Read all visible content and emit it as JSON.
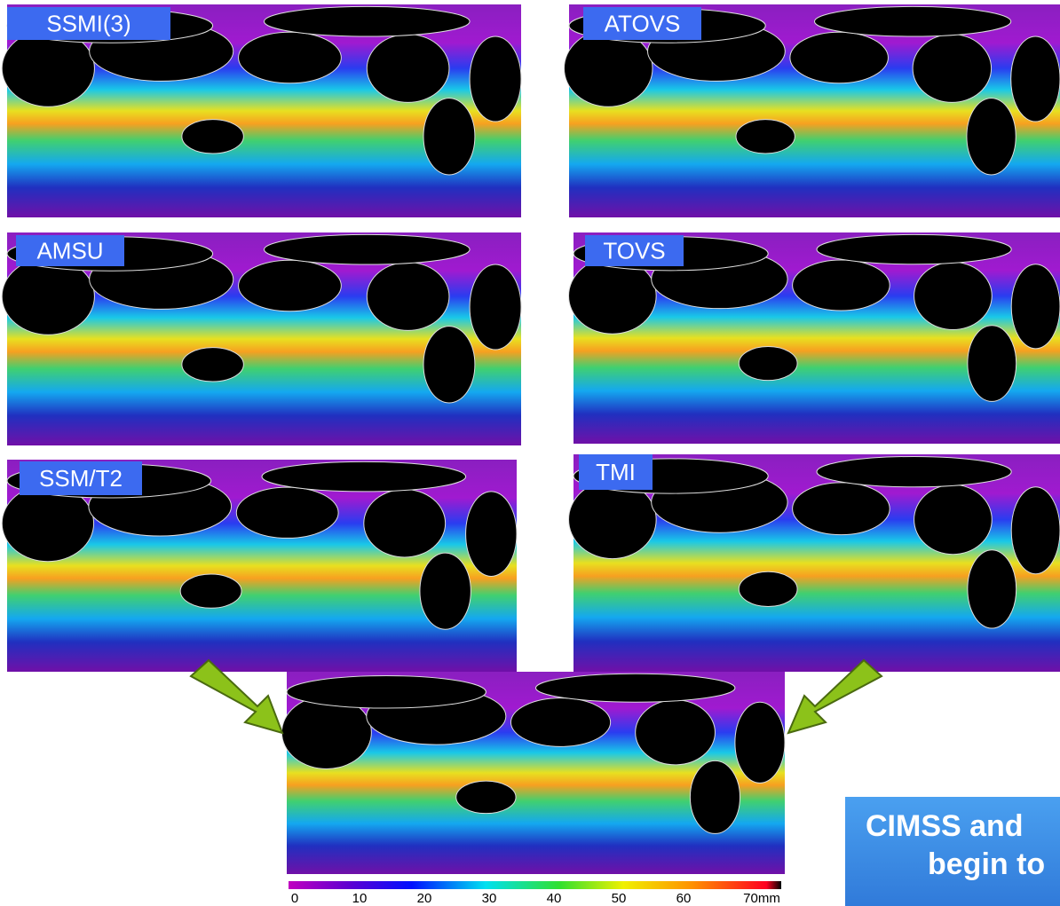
{
  "panels": [
    {
      "label": "SSMI(3)"
    },
    {
      "label": "ATOVS"
    },
    {
      "label": "AMSU"
    },
    {
      "label": "TOVS"
    },
    {
      "label": "SSM/T2"
    },
    {
      "label": "TMI"
    }
  ],
  "colorbar": {
    "labels": [
      "0",
      "10",
      "20",
      "30",
      "40",
      "50",
      "60",
      "70mm"
    ]
  },
  "callout": {
    "lines": [
      "CIMSS and",
      "begin to"
    ]
  }
}
